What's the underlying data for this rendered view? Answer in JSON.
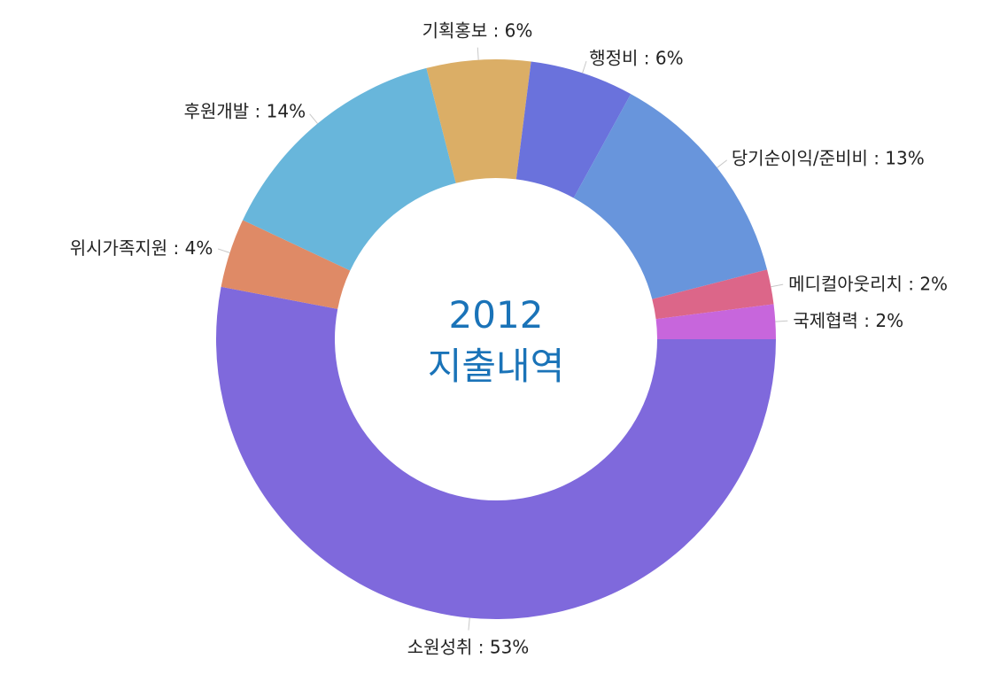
{
  "chart_data": {
    "type": "pie",
    "center_title": "2012",
    "center_subtitle": "지출내역",
    "label_separator": " : ",
    "slices": [
      {
        "label": "소원성취",
        "value": 53,
        "display": "53%",
        "color": "#7f69dc"
      },
      {
        "label": "위시가족지원",
        "value": 4,
        "display": "4%",
        "color": "#df8a66"
      },
      {
        "label": "후원개발",
        "value": 14,
        "display": "14%",
        "color": "#68b6db"
      },
      {
        "label": "기획홍보",
        "value": 6,
        "display": "6%",
        "color": "#dbae66"
      },
      {
        "label": "행정비",
        "value": 6,
        "display": "6%",
        "color": "#6a72dc"
      },
      {
        "label": "당기순이익/준비비",
        "value": 13,
        "display": "13%",
        "color": "#6895dc"
      },
      {
        "label": "메디컬아웃리치",
        "value": 2,
        "display": "2%",
        "color": "#dc6689"
      },
      {
        "label": "국제협력",
        "value": 2,
        "display": "2%",
        "color": "#c766dc"
      }
    ]
  }
}
